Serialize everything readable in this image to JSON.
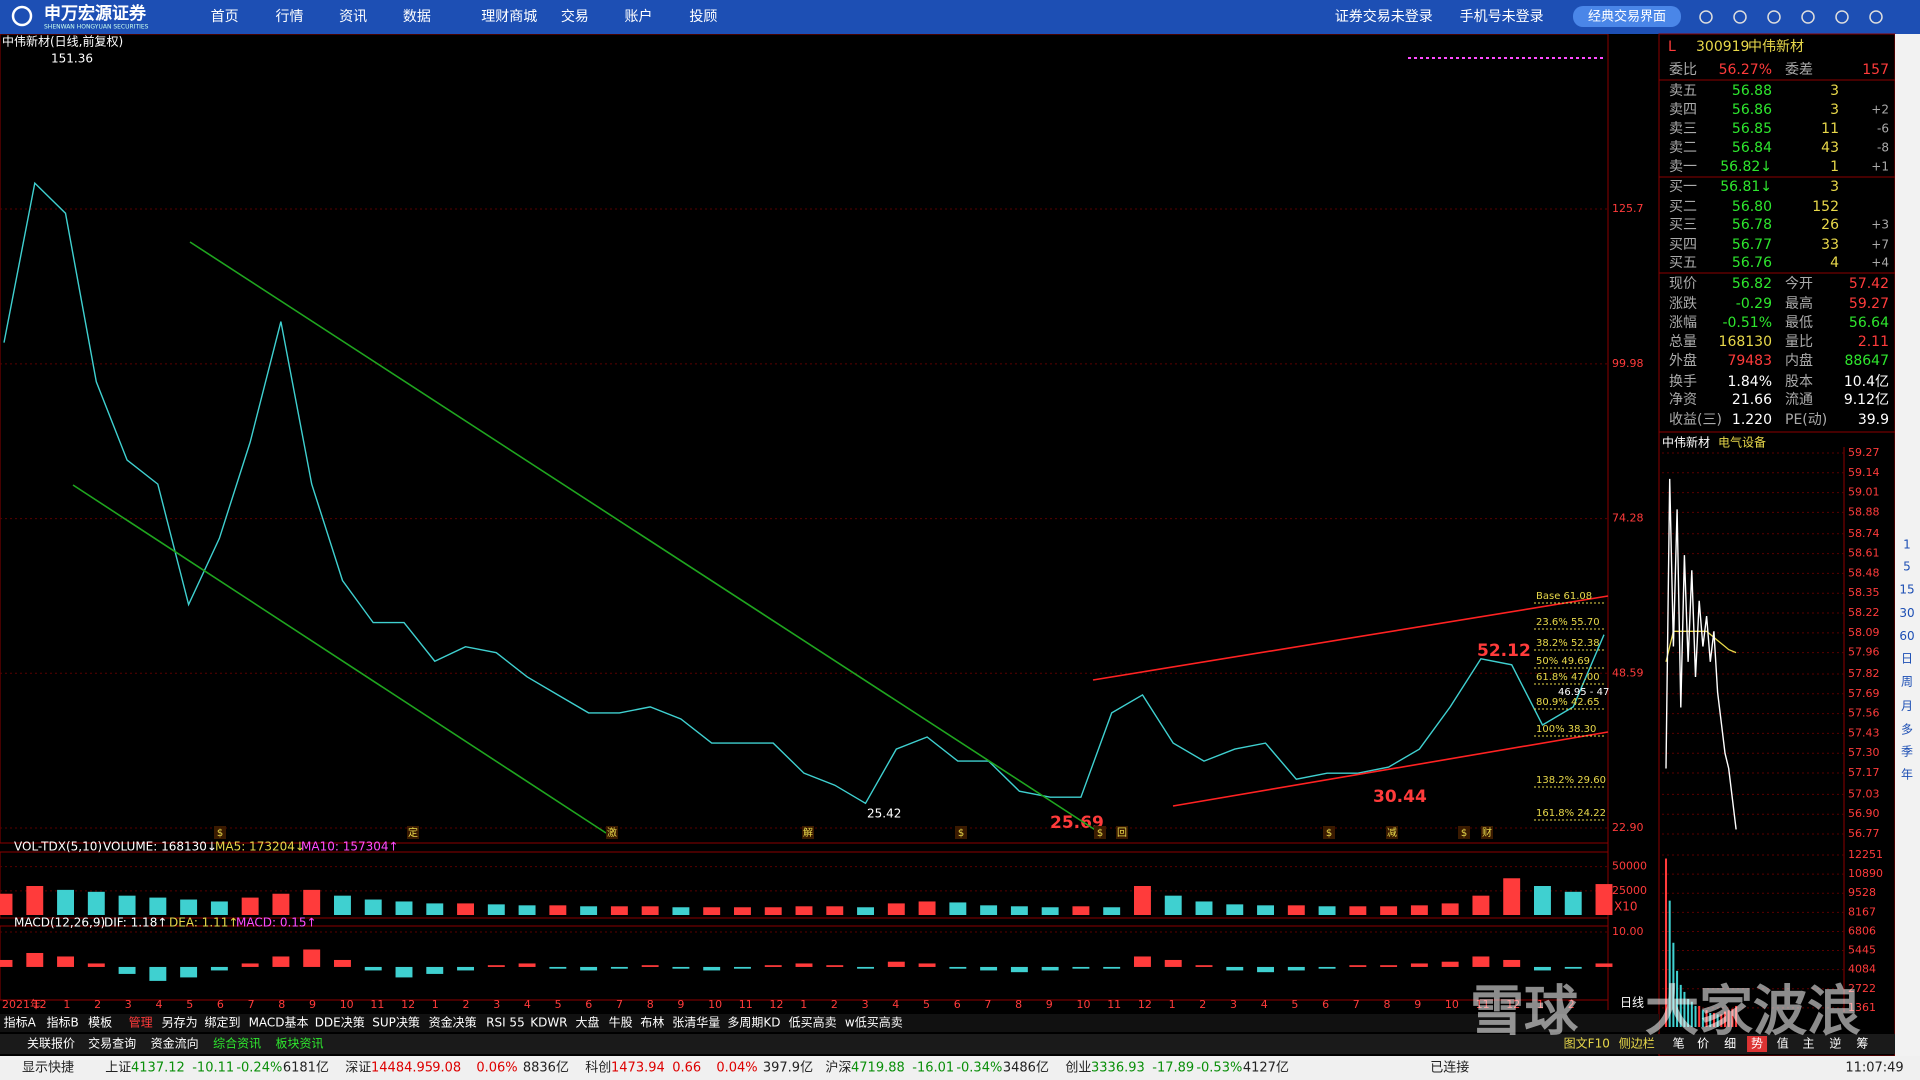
{
  "nav": {
    "logo": "申万宏源证券",
    "logo_sub": "SHENWAN HONGYUAN SECURITIES",
    "items": [
      "首页",
      "行情",
      "资讯",
      "数据",
      "理财商城",
      "交易",
      "账户",
      "投顾"
    ],
    "login": [
      "证券交易未登录",
      "手机号未登录"
    ],
    "button": "经典交易界面"
  },
  "chart_data": [
    {
      "type": "line",
      "title": "中伟新材(日线,前复权)",
      "values": [
        103.5,
        130,
        125,
        97,
        84,
        80,
        60,
        71,
        87,
        107,
        80,
        64,
        57,
        57,
        50.6,
        53,
        52,
        48,
        45,
        42,
        42,
        43,
        41,
        37,
        37,
        37,
        32,
        30,
        27,
        36,
        38,
        34,
        34,
        29,
        28,
        28,
        42,
        45,
        37,
        34,
        36,
        37,
        31,
        32,
        32,
        33,
        36,
        43,
        51,
        50,
        40,
        43,
        55
      ],
      "ylim": [
        20.9,
        152.1
      ],
      "yticks": [
        {
          "value": 22.9,
          "label": "22.90"
        },
        48.59,
        74.28,
        99.98,
        125.7
      ],
      "color": "#3fd0d0",
      "high_label": "151.36",
      "low_label": "25.42",
      "callouts": [
        "25.69",
        "30.44",
        "52.12"
      ],
      "fib_labels": [
        "Base 61.08",
        "23.6% 55.70",
        "38.2% 52.38",
        "50% 49.69",
        "61.8% 47.00",
        "80.9% 42.65",
        "100% 38.30",
        "138.2% 29.60",
        "161.8% 24.22"
      ],
      "fib_note": "46.95 - 47",
      "markers": [
        "$",
        "定",
        "激",
        "解",
        "$",
        "$",
        "回",
        "$",
        "减",
        "$",
        "财"
      ],
      "xtick_labels": [
        "2021年",
        "12",
        "1",
        "2",
        "3",
        "4",
        "5",
        "6",
        "7",
        "8",
        "9",
        "10",
        "11",
        "12",
        "1",
        "2",
        "3",
        "4",
        "5",
        "6",
        "7",
        "8",
        "9",
        "10",
        "11",
        "12",
        "1",
        "2",
        "3",
        "4",
        "5",
        "6",
        "7",
        "8",
        "9",
        "10",
        "11",
        "12",
        "1",
        "2",
        "3",
        "4",
        "5",
        "6",
        "7",
        "8",
        "9",
        "10",
        "11",
        "12",
        "1",
        "2"
      ]
    },
    {
      "type": "bar",
      "title": "VOL-TDX(5,10)",
      "legend": [
        "VOLUME: 168130↓",
        "MA5: 173204↓",
        "MA10: 157304↑"
      ],
      "values": [
        22000,
        30000,
        26000,
        24000,
        20000,
        18000,
        16000,
        14000,
        18000,
        22000,
        26000,
        20000,
        16000,
        14000,
        12000,
        12000,
        11000,
        10000,
        10000,
        9000,
        9000,
        9000,
        8000,
        8000,
        8000,
        8000,
        9000,
        9000,
        8000,
        12000,
        14000,
        13000,
        10000,
        9000,
        8000,
        9000,
        8000,
        30000,
        20000,
        14000,
        11000,
        10000,
        10000,
        9000,
        9000,
        9000,
        10000,
        12000,
        20000,
        38000,
        30000,
        24000,
        32000
      ],
      "ylim": [
        0,
        60000
      ],
      "yticks": [
        25000,
        50000
      ],
      "unit_label": "X10"
    },
    {
      "type": "bar",
      "title": "MACD(12,26,9)",
      "legend": [
        "DIF: 1.18↑",
        "DEA: 1.11↑",
        "MACD: 0.15↑"
      ],
      "values": [
        2,
        4,
        3,
        1,
        -2,
        -4,
        -3,
        -1,
        1,
        3,
        5,
        2,
        -1,
        -3,
        -2,
        -1,
        0.5,
        1,
        -0.5,
        -1,
        -0.5,
        0.5,
        -0.5,
        -1,
        -0.5,
        0.5,
        1,
        0.5,
        -0.5,
        1.5,
        1,
        -0.5,
        -1,
        -1.5,
        -1,
        -0.5,
        -0.5,
        3,
        2,
        0.5,
        -1,
        -1.5,
        -1,
        -0.5,
        0.5,
        0.5,
        1,
        1.5,
        3,
        2,
        -1,
        -0.5,
        1
      ],
      "ylim": [
        -8.9,
        10.3
      ],
      "yticks": [
        {
          "value": 10,
          "label": "10.00"
        }
      ]
    },
    {
      "type": "line",
      "title": "中伟新材",
      "subtitle": "电气设备",
      "values": [
        57.2,
        59.1,
        58.0,
        58.9,
        57.6,
        58.6,
        57.9,
        58.5,
        57.8,
        58.3,
        58.0,
        58.2,
        57.9,
        58.1,
        57.7,
        57.5,
        57.3,
        57.2,
        57.0,
        56.8
      ],
      "avg_values": [
        57.9,
        58.0,
        58.1,
        58.1,
        58.1,
        58.1,
        58.1,
        58.1,
        58.1,
        58.1,
        58.1,
        58.1,
        58.08,
        58.06,
        58.04,
        58.02,
        58.0,
        57.98,
        57.97,
        57.96
      ],
      "color": "#ffffff",
      "avg_color": "#e8d84a",
      "ylim": [
        56.77,
        59.27
      ],
      "yticks": [
        59.27,
        59.14,
        59.01,
        58.88,
        58.74,
        58.61,
        58.48,
        58.35,
        58.22,
        58.09,
        57.96,
        57.82,
        57.69,
        57.56,
        57.43,
        {
          "value": 57.3,
          "label": "57.30"
        },
        57.17,
        57.03,
        {
          "value": 56.9,
          "label": "56.90"
        },
        56.77
      ]
    },
    {
      "type": "bar",
      "values": [
        12000,
        9000,
        6000,
        4000,
        3000,
        2500,
        2000,
        1800,
        1500,
        1500,
        1200,
        1200,
        1000,
        1000,
        900,
        900,
        1100,
        1200,
        1300,
        1500
      ],
      "ylim": [
        0,
        12251
      ],
      "yticks": [
        12251,
        10890,
        9528,
        8167,
        6806,
        5445,
        4084,
        2722,
        1361
      ],
      "period_label": "日线"
    }
  ],
  "quote": {
    "flag": "L",
    "code": "300919",
    "name": "中伟新材",
    "ratio": [
      "委比",
      "56.27%",
      "委差",
      "157"
    ],
    "asks": [
      [
        "卖五",
        "56.88",
        "3"
      ],
      [
        "卖四",
        "56.86",
        "3",
        "+2"
      ],
      [
        "卖三",
        "56.85",
        "11",
        "-6"
      ],
      [
        "卖二",
        "56.84",
        "43",
        "-8"
      ],
      [
        "卖一",
        "56.82↓",
        "1",
        "+1"
      ]
    ],
    "bids": [
      [
        "买一",
        "56.81↓",
        "3"
      ],
      [
        "买二",
        "56.80",
        "152"
      ],
      [
        "买三",
        "56.78",
        "26",
        "+3"
      ],
      [
        "买四",
        "56.77",
        "33",
        "+7"
      ],
      [
        "买五",
        "56.76",
        "4",
        "+4"
      ]
    ],
    "stats": [
      [
        "现价",
        "56.82",
        "今开",
        "57.42"
      ],
      [
        "涨跌",
        "-0.29",
        "最高",
        "59.27"
      ],
      [
        "涨幅",
        "-0.51%",
        "最低",
        "56.64"
      ],
      [
        "总量",
        "168130",
        "量比",
        "2.11"
      ],
      [
        "外盘",
        "79483",
        "内盘",
        "88647"
      ],
      [
        "换手",
        "1.84%",
        "股本",
        "10.4亿"
      ],
      [
        "净资",
        "21.66",
        "流通",
        "9.12亿"
      ],
      [
        "收益(三)",
        "1.220",
        "PE(动)",
        "39.9"
      ]
    ]
  },
  "side_toolbar": [
    "1",
    "5",
    "15",
    "30",
    "60",
    "日",
    "周",
    "月",
    "多",
    "季",
    "年"
  ],
  "indicator_bar": [
    "指标A",
    "指标B",
    "模板",
    "管理",
    "另存为",
    "绑定到",
    "MACD基本",
    "DDE决策",
    "SUP决策",
    "资金决策",
    "RSI 55",
    "KDWR",
    "大盘",
    "牛股",
    "布林",
    "张清华量",
    "多周期KD",
    "低买高卖",
    "w低买高卖"
  ],
  "tabs": [
    "关联报价",
    "交易查询",
    "资金流向",
    "综合资讯",
    "板块资讯"
  ],
  "side_tabs": [
    "图文F10",
    "侧边栏"
  ],
  "view_tabs": [
    "笔",
    "价",
    "细",
    "势",
    "值",
    "主",
    "逆",
    "筹"
  ],
  "status": {
    "shortcut": "显示快捷",
    "indices": [
      [
        "上证",
        "4137.12",
        "-10.11",
        "-0.24%",
        "6181亿"
      ],
      [
        "深证",
        "14484.95",
        "9.08",
        "0.06%",
        "8836亿"
      ],
      [
        "科创",
        "1473.94",
        "0.66",
        "0.04%",
        "397.9亿"
      ],
      [
        "沪深",
        "4719.88",
        "-16.01",
        "-0.34%",
        "3486亿"
      ],
      [
        "创业",
        "3336.93",
        "-17.89",
        "-0.53%",
        "4127亿"
      ]
    ],
    "connection": "已连接",
    "time": "11:07:49"
  },
  "watermark": [
    "雪球",
    "大家波浪"
  ]
}
